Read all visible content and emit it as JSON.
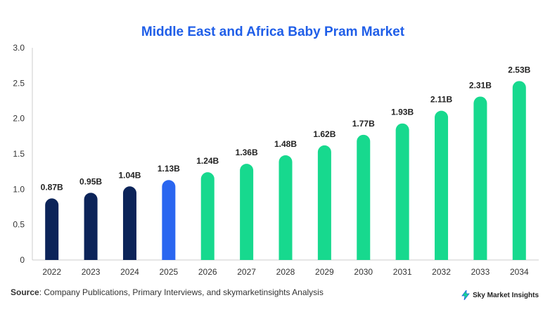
{
  "source": {
    "label": "Source",
    "text": ": Company Publications, Primary Interviews, and skymarketinsights Analysis"
  },
  "brand": {
    "name": "Sky Market Insights",
    "icon": "bolt-logo-icon"
  },
  "colors": {
    "historical": "#0c2459",
    "current": "#2a66f0",
    "forecast": "#17d98e",
    "title": "#1f5ee8"
  },
  "chart_data": {
    "type": "bar",
    "title": "Middle East and Africa Baby Pram Market",
    "xlabel": "",
    "ylabel": "",
    "categories": [
      "2022",
      "2023",
      "2024",
      "2025",
      "2026",
      "2027",
      "2028",
      "2029",
      "2030",
      "2031",
      "2032",
      "2033",
      "2034"
    ],
    "values": [
      0.87,
      0.95,
      1.04,
      1.13,
      1.24,
      1.36,
      1.48,
      1.62,
      1.77,
      1.93,
      2.11,
      2.31,
      2.53
    ],
    "data_labels": [
      "0.87B",
      "0.95B",
      "1.04B",
      "1.13B",
      "1.24B",
      "1.36B",
      "1.48B",
      "1.62B",
      "1.77B",
      "1.93B",
      "2.11B",
      "2.31B",
      "2.53B"
    ],
    "bar_groups": [
      "historical",
      "historical",
      "historical",
      "current",
      "forecast",
      "forecast",
      "forecast",
      "forecast",
      "forecast",
      "forecast",
      "forecast",
      "forecast",
      "forecast"
    ],
    "ylim": [
      0,
      3.0
    ],
    "yticks": [
      "0",
      "0.5",
      "1.0",
      "1.5",
      "2.0",
      "2.5",
      "3.0"
    ],
    "grid": false,
    "legend": "none"
  }
}
